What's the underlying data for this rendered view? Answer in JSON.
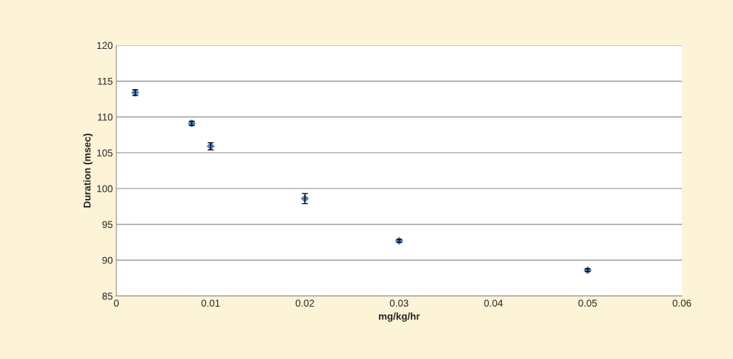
{
  "chart_data": {
    "type": "scatter",
    "xlabel": "mg/kg/hr",
    "ylabel": "Duration (msec)",
    "x": [
      0.002,
      0.008,
      0.01,
      0.02,
      0.03,
      0.05
    ],
    "series": [
      {
        "color": "#4f81bd",
        "values": [
          113.4,
          109.1,
          105.9,
          98.6,
          92.7,
          88.6
        ],
        "errors": [
          0.4,
          0.3,
          0.5,
          0.7,
          0.2,
          0.2
        ]
      }
    ],
    "xlim": [
      0,
      0.06
    ],
    "xticks": [
      0,
      0.01,
      0.02,
      0.03,
      0.04,
      0.05,
      0.06
    ],
    "ylim": [
      85,
      120
    ],
    "yticks": [
      85,
      90,
      95,
      100,
      105,
      110,
      115,
      120
    ],
    "grid": "y",
    "marker": "diamond"
  }
}
